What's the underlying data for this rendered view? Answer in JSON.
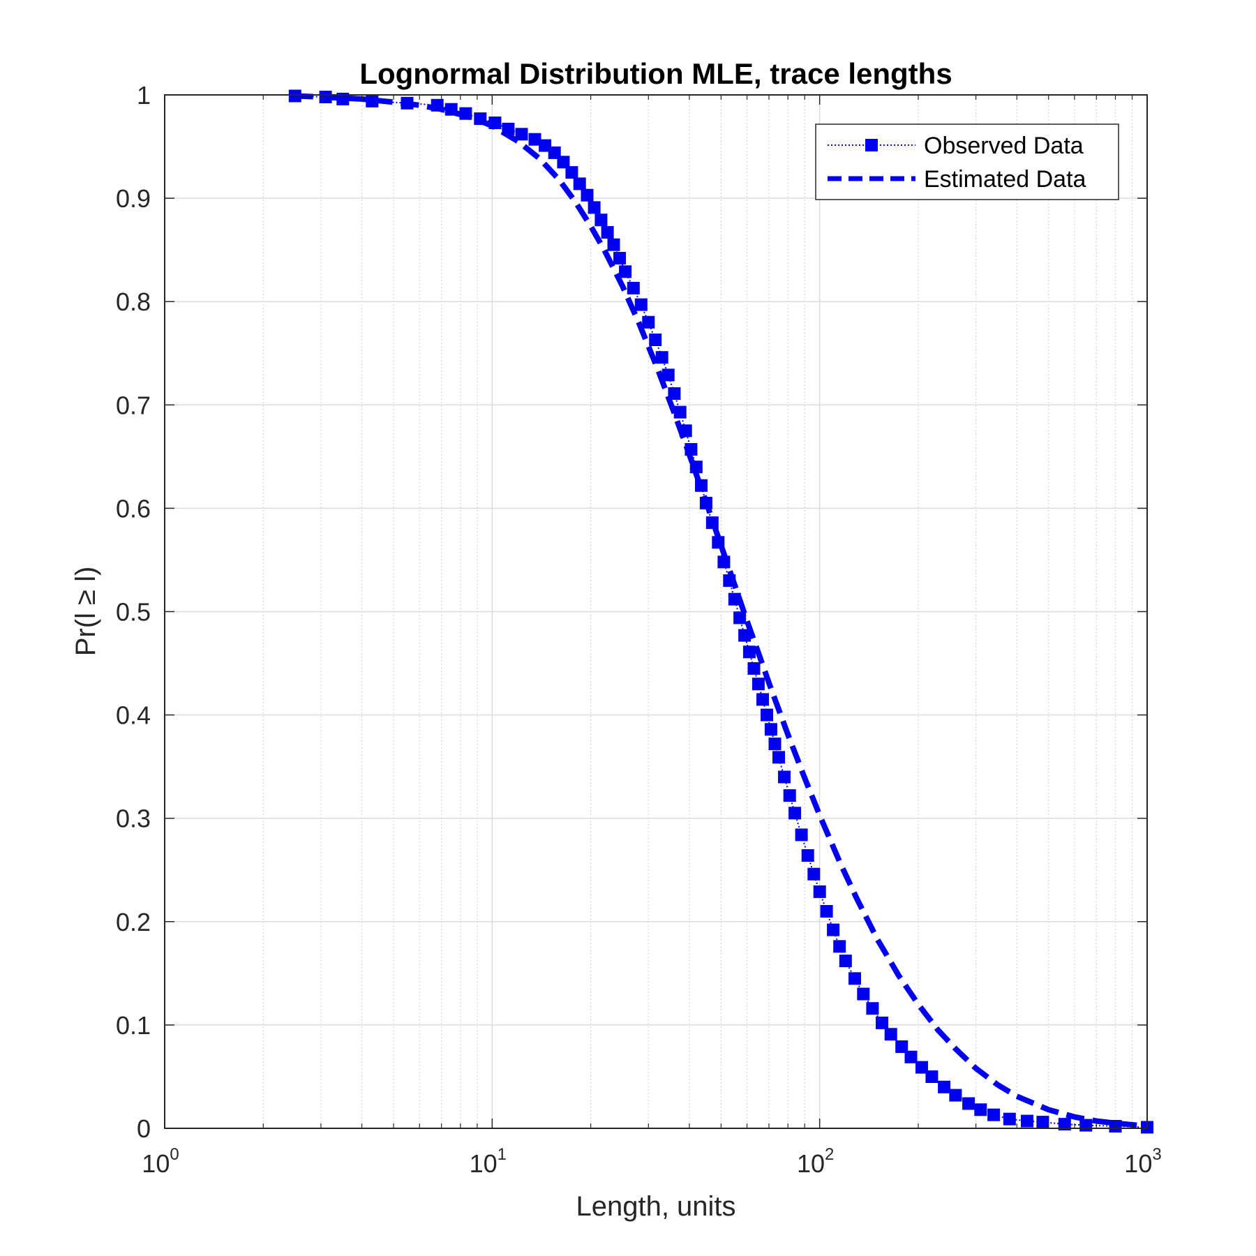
{
  "chart_data": {
    "type": "line",
    "title": "Lognormal Distribution MLE, trace lengths",
    "xlabel": "Length, units",
    "ylabel": "Pr(l ≥ l)",
    "xscale": "log",
    "xlim": [
      1,
      1000
    ],
    "ylim": [
      0,
      1
    ],
    "grid": true,
    "minor_grid_x": true,
    "legend_position": "top-right",
    "x_ticks": [
      {
        "base": "10",
        "exp": "0"
      },
      {
        "base": "10",
        "exp": "1"
      },
      {
        "base": "10",
        "exp": "2"
      },
      {
        "base": "10",
        "exp": "3"
      }
    ],
    "y_ticks": [
      "0",
      "0.1",
      "0.2",
      "0.3",
      "0.4",
      "0.5",
      "0.6",
      "0.7",
      "0.8",
      "0.9",
      "1"
    ],
    "series": [
      {
        "name": "Observed Data",
        "style": "dotted-square-markers",
        "color": "#0000ee",
        "x": [
          2.5,
          3.1,
          3.5,
          4.3,
          5.5,
          6.8,
          7.5,
          8.3,
          9.2,
          10.2,
          11.2,
          12.3,
          13.5,
          14.5,
          15.5,
          16.5,
          17.5,
          18.5,
          19.5,
          20.5,
          21.5,
          22.5,
          23.5,
          24.5,
          25.5,
          27,
          28.5,
          30,
          31.5,
          33,
          34.5,
          36,
          37.5,
          39,
          40.5,
          42,
          43.5,
          45,
          47,
          49,
          51,
          53,
          55,
          57,
          59,
          61,
          63,
          65,
          67,
          69,
          71,
          73,
          75,
          78,
          81,
          84,
          88,
          92,
          96,
          100,
          105,
          110,
          115,
          120,
          128,
          136,
          145,
          155,
          165,
          178,
          190,
          205,
          220,
          240,
          260,
          285,
          310,
          340,
          380,
          430,
          480,
          560,
          650,
          800,
          1000
        ],
        "y": [
          0.999,
          0.998,
          0.996,
          0.994,
          0.992,
          0.99,
          0.986,
          0.982,
          0.977,
          0.973,
          0.967,
          0.962,
          0.957,
          0.951,
          0.944,
          0.935,
          0.925,
          0.914,
          0.903,
          0.891,
          0.879,
          0.867,
          0.855,
          0.842,
          0.829,
          0.813,
          0.797,
          0.78,
          0.763,
          0.746,
          0.729,
          0.711,
          0.693,
          0.675,
          0.657,
          0.64,
          0.622,
          0.605,
          0.586,
          0.567,
          0.548,
          0.53,
          0.512,
          0.494,
          0.477,
          0.461,
          0.445,
          0.43,
          0.415,
          0.4,
          0.386,
          0.372,
          0.359,
          0.34,
          0.322,
          0.305,
          0.284,
          0.264,
          0.246,
          0.229,
          0.21,
          0.192,
          0.176,
          0.162,
          0.145,
          0.13,
          0.116,
          0.102,
          0.091,
          0.079,
          0.069,
          0.059,
          0.05,
          0.04,
          0.032,
          0.024,
          0.018,
          0.013,
          0.009,
          0.007,
          0.006,
          0.004,
          0.003,
          0.002,
          0.001
        ]
      },
      {
        "name": "Estimated Data",
        "style": "dashed",
        "color": "#0000ee",
        "x": [
          2.5,
          3,
          4,
          5,
          6,
          7,
          8,
          9,
          10,
          12,
          14,
          16,
          18,
          20,
          22,
          25,
          28,
          32,
          36,
          40,
          45,
          50,
          55,
          60,
          65,
          70,
          80,
          90,
          100,
          115,
          130,
          150,
          175,
          200,
          230,
          260,
          300,
          350,
          400,
          500,
          600,
          700,
          800,
          1000
        ],
        "y": [
          0.999,
          0.998,
          0.996,
          0.993,
          0.99,
          0.986,
          0.981,
          0.976,
          0.97,
          0.955,
          0.938,
          0.918,
          0.896,
          0.873,
          0.85,
          0.815,
          0.78,
          0.735,
          0.692,
          0.652,
          0.606,
          0.564,
          0.526,
          0.491,
          0.46,
          0.431,
          0.381,
          0.339,
          0.303,
          0.258,
          0.222,
          0.183,
          0.147,
          0.12,
          0.095,
          0.077,
          0.058,
          0.042,
          0.031,
          0.018,
          0.011,
          0.007,
          0.005,
          0.002
        ]
      }
    ]
  }
}
